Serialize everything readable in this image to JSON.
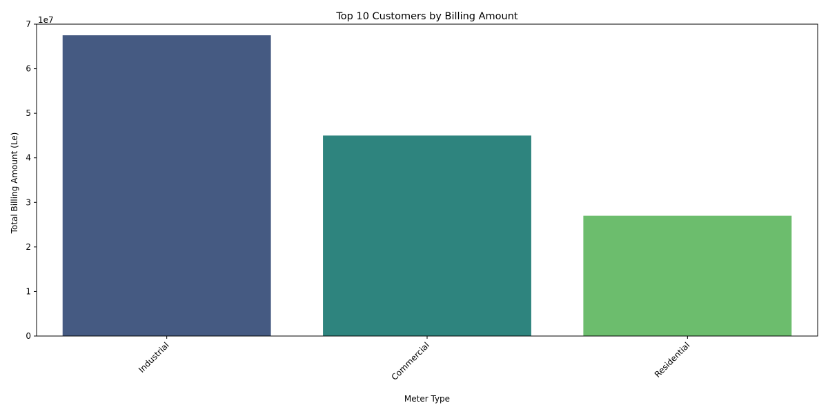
{
  "chart_data": {
    "type": "bar",
    "title": "Top 10 Customers by Billing Amount",
    "xlabel": "Meter Type",
    "ylabel": "Total Billing Amount (Le)",
    "offset_text": "1e7",
    "categories": [
      "Industrial",
      "Commercial",
      "Residential"
    ],
    "values": [
      67500000,
      45000000,
      27000000
    ],
    "colors": [
      "#455a82",
      "#2e847e",
      "#6cbd6d"
    ],
    "ylim": [
      0,
      70000000
    ],
    "yticks": [
      0,
      10000000,
      20000000,
      30000000,
      40000000,
      50000000,
      60000000,
      70000000
    ],
    "ytick_labels": [
      "0",
      "1",
      "2",
      "3",
      "4",
      "5",
      "6",
      "7"
    ],
    "grid": false,
    "legend": "none"
  }
}
